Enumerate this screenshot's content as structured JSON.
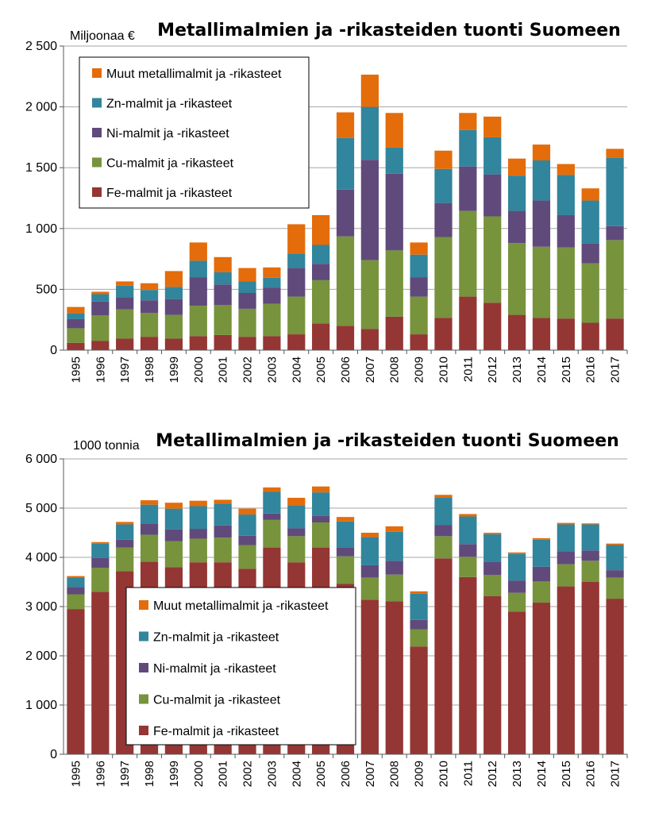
{
  "colors": {
    "Fe": "#943634",
    "Cu": "#77933c",
    "Ni": "#604a7b",
    "Zn": "#31859c",
    "Muut": "#e46c0a"
  },
  "chart_data": [
    {
      "type": "bar",
      "stacked": true,
      "title": "Metallimalmien ja -rikasteiden tuonti Suomeen",
      "ylabel": "Miljoonaa €",
      "xlabel": "",
      "ylim": [
        0,
        2500
      ],
      "yticks": [
        "0",
        "500",
        "1 000",
        "1 500",
        "2 000",
        "2 500"
      ],
      "grid": true,
      "legend": "top-left",
      "legend_order": [
        "Muut",
        "Zn",
        "Ni",
        "Cu",
        "Fe"
      ],
      "categories": [
        "1995",
        "1996",
        "1997",
        "1998",
        "1999",
        "2000",
        "2001",
        "2002",
        "2003",
        "2004",
        "2005",
        "2006",
        "2007",
        "2008",
        "2009",
        "2010",
        "2011",
        "2012",
        "2013",
        "2014",
        "2015",
        "2016",
        "2017"
      ],
      "series": [
        {
          "key": "Fe",
          "name": "Fe-malmit ja -rikasteet",
          "values": [
            60,
            75,
            95,
            110,
            95,
            115,
            125,
            110,
            115,
            130,
            220,
            200,
            175,
            275,
            130,
            265,
            440,
            390,
            290,
            265,
            260,
            225,
            260
          ]
        },
        {
          "key": "Cu",
          "name": "Cu-malmit ja -rikasteet",
          "values": [
            120,
            210,
            240,
            195,
            195,
            250,
            245,
            230,
            265,
            310,
            355,
            735,
            565,
            545,
            310,
            665,
            705,
            710,
            590,
            585,
            585,
            490,
            645
          ]
        },
        {
          "key": "Ni",
          "name": "Ni-malmit ja -rikasteet",
          "values": [
            75,
            115,
            100,
            105,
            130,
            235,
            170,
            130,
            135,
            235,
            135,
            385,
            825,
            630,
            160,
            280,
            365,
            345,
            265,
            380,
            265,
            160,
            115
          ]
        },
        {
          "key": "Zn",
          "name": "Zn-malmit ja -rikasteet",
          "values": [
            50,
            60,
            95,
            85,
            100,
            135,
            100,
            95,
            80,
            120,
            155,
            425,
            435,
            215,
            185,
            280,
            300,
            305,
            290,
            330,
            330,
            355,
            560
          ]
        },
        {
          "key": "Muut",
          "name": "Muut metallimalmit ja -rikasteet",
          "values": [
            50,
            20,
            35,
            55,
            130,
            150,
            125,
            110,
            85,
            240,
            245,
            210,
            265,
            285,
            100,
            150,
            140,
            170,
            140,
            130,
            90,
            100,
            75
          ]
        }
      ]
    },
    {
      "type": "bar",
      "stacked": true,
      "title": "Metallimalmien ja -rikasteiden tuonti Suomeen",
      "ylabel": "1000 tonnia",
      "xlabel": "",
      "ylim": [
        0,
        6000
      ],
      "yticks": [
        "0",
        "1 000",
        "2 000",
        "3 000",
        "4 000",
        "5 000",
        "6 000"
      ],
      "grid": true,
      "legend": "bottom-left",
      "legend_order": [
        "Muut",
        "Zn",
        "Ni",
        "Cu",
        "Fe"
      ],
      "categories": [
        "1995",
        "1996",
        "1997",
        "1998",
        "1999",
        "2000",
        "2001",
        "2002",
        "2003",
        "2004",
        "2005",
        "2006",
        "2007",
        "2008",
        "2009",
        "2010",
        "2011",
        "2012",
        "2013",
        "2014",
        "2015",
        "2016",
        "2017"
      ],
      "series": [
        {
          "key": "Fe",
          "name": "Fe-malmit ja -rikasteet",
          "values": [
            2950,
            3300,
            3720,
            3910,
            3800,
            3900,
            3900,
            3770,
            4200,
            3900,
            4200,
            3460,
            3140,
            3110,
            2190,
            3980,
            3600,
            3210,
            2900,
            3080,
            3410,
            3500,
            3160
          ]
        },
        {
          "key": "Cu",
          "name": "Cu-malmit ja -rikasteet",
          "values": [
            300,
            490,
            480,
            550,
            530,
            480,
            500,
            480,
            560,
            530,
            510,
            560,
            450,
            540,
            350,
            450,
            410,
            430,
            380,
            430,
            450,
            430,
            430
          ]
        },
        {
          "key": "Ni",
          "name": "Ni-malmit ja -rikasteet",
          "values": [
            150,
            200,
            160,
            230,
            240,
            200,
            250,
            190,
            130,
            160,
            130,
            180,
            250,
            280,
            190,
            230,
            260,
            270,
            250,
            300,
            260,
            210,
            150
          ]
        },
        {
          "key": "Zn",
          "name": "Zn-malmit ja -rikasteet",
          "values": [
            190,
            290,
            310,
            380,
            420,
            460,
            440,
            430,
            440,
            470,
            480,
            530,
            570,
            590,
            530,
            550,
            560,
            560,
            540,
            550,
            550,
            530,
            510
          ]
        },
        {
          "key": "Muut",
          "name": "Muut metallimalmit ja -rikasteet",
          "values": [
            30,
            30,
            50,
            90,
            120,
            110,
            80,
            120,
            90,
            150,
            120,
            90,
            90,
            110,
            50,
            60,
            50,
            30,
            30,
            30,
            30,
            20,
            30
          ]
        }
      ]
    }
  ]
}
